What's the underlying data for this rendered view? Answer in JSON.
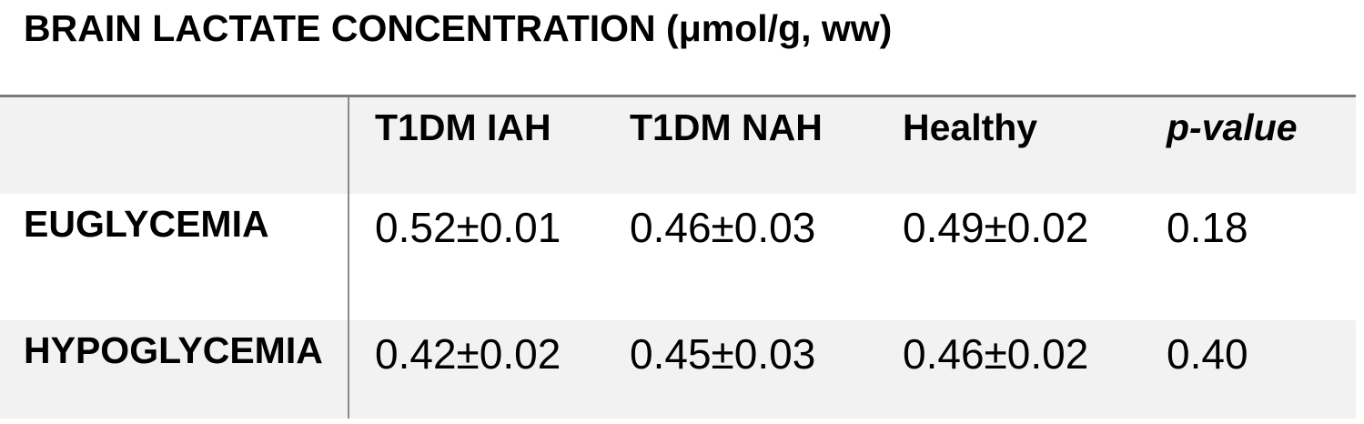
{
  "title": "BRAIN LACTATE CONCENTRATION (μmol/g, ww)",
  "table": {
    "corner_label": "",
    "columns": [
      "T1DM IAH",
      "T1DM NAH",
      "Healthy",
      "p-value"
    ],
    "rows": [
      {
        "label": "EUGLYCEMIA",
        "values": [
          "0.52±0.01",
          "0.46±0.03",
          "0.49±0.02",
          "0.18"
        ]
      },
      {
        "label": "HYPOGLYCEMIA",
        "values": [
          "0.42±0.02",
          "0.45±0.03",
          "0.46±0.02",
          "0.40"
        ]
      }
    ]
  },
  "colors": {
    "band_gray": "#f2f2f2",
    "border_top_gray": "#7a7a7a",
    "divider_gray": "#8a8a8a",
    "text": "#000000",
    "background": "#ffffff"
  }
}
